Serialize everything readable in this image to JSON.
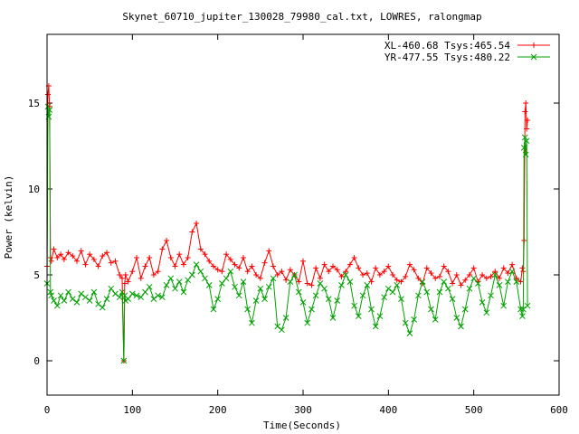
{
  "chart_data": {
    "type": "scatter",
    "title": "Skynet_60710_jupiter_130028_79980_cal.txt, LOWRES, ralongmap",
    "xlabel": "Time(Seconds)",
    "ylabel": "Power (kelvin)",
    "xlim": [
      0,
      600
    ],
    "ylim": [
      -2,
      19
    ],
    "x_ticks": [
      0,
      100,
      200,
      300,
      400,
      500,
      600
    ],
    "y_ticks": [
      0,
      5,
      10,
      15
    ],
    "grid": false,
    "legend_position": "top-right",
    "series": [
      {
        "name": "XL-460.68 Tsys:465.54",
        "color": "#ff0000",
        "marker": "plus",
        "x": [
          0,
          1,
          2,
          3,
          4,
          5,
          8,
          12,
          16,
          20,
          25,
          30,
          35,
          40,
          45,
          50,
          55,
          60,
          65,
          70,
          75,
          80,
          85,
          88,
          90,
          91,
          92,
          95,
          100,
          105,
          110,
          115,
          120,
          125,
          130,
          135,
          140,
          145,
          150,
          155,
          160,
          165,
          170,
          175,
          180,
          185,
          190,
          195,
          200,
          205,
          210,
          215,
          220,
          225,
          230,
          235,
          240,
          245,
          250,
          255,
          260,
          265,
          270,
          275,
          280,
          285,
          290,
          295,
          300,
          305,
          310,
          315,
          320,
          325,
          330,
          335,
          340,
          345,
          350,
          355,
          360,
          365,
          370,
          375,
          380,
          385,
          390,
          395,
          400,
          405,
          410,
          415,
          420,
          425,
          430,
          435,
          440,
          445,
          450,
          455,
          460,
          465,
          470,
          475,
          480,
          485,
          490,
          495,
          500,
          505,
          510,
          515,
          520,
          525,
          530,
          535,
          540,
          545,
          550,
          555,
          557,
          558,
          559,
          560,
          561,
          562,
          563
        ],
        "y": [
          5.5,
          15.5,
          16.0,
          14.8,
          6.0,
          5.8,
          6.5,
          6.0,
          6.2,
          5.9,
          6.3,
          6.1,
          5.8,
          6.4,
          5.6,
          6.2,
          5.9,
          5.5,
          6.1,
          6.3,
          5.7,
          5.8,
          5.0,
          4.8,
          0.0,
          4.5,
          5.0,
          4.6,
          5.2,
          6.0,
          4.8,
          5.5,
          6.0,
          5.0,
          5.2,
          6.5,
          7.0,
          6.0,
          5.5,
          6.2,
          5.6,
          6.0,
          7.5,
          8.0,
          6.5,
          6.2,
          5.8,
          5.5,
          5.3,
          5.2,
          6.2,
          5.9,
          5.6,
          5.4,
          6.0,
          5.2,
          5.5,
          5.0,
          4.8,
          5.7,
          6.4,
          5.5,
          5.0,
          5.2,
          4.7,
          5.3,
          5.0,
          4.6,
          5.8,
          4.5,
          4.4,
          5.4,
          4.8,
          5.6,
          5.2,
          5.5,
          5.3,
          4.9,
          5.2,
          5.6,
          6.0,
          5.4,
          5.0,
          5.1,
          4.6,
          5.4,
          5.0,
          5.2,
          5.5,
          5.0,
          4.7,
          4.6,
          4.9,
          5.6,
          5.3,
          4.8,
          4.5,
          5.4,
          5.1,
          4.8,
          4.9,
          5.5,
          5.2,
          4.5,
          5.0,
          4.4,
          4.7,
          5.0,
          5.4,
          4.6,
          5.0,
          4.8,
          4.9,
          5.2,
          4.8,
          5.4,
          5.1,
          5.6,
          4.8,
          4.6,
          5.4,
          5.2,
          7.0,
          14.5,
          15.0,
          13.5,
          14.0
        ]
      },
      {
        "name": "YR-477.55 Tsys:480.22",
        "color": "#00a000",
        "marker": "cross",
        "x": [
          0,
          1,
          2,
          3,
          4,
          5,
          8,
          12,
          16,
          20,
          25,
          30,
          35,
          40,
          45,
          50,
          55,
          60,
          65,
          70,
          75,
          80,
          85,
          88,
          90,
          91,
          92,
          95,
          100,
          105,
          110,
          115,
          120,
          125,
          130,
          135,
          140,
          145,
          150,
          155,
          160,
          165,
          170,
          175,
          180,
          185,
          190,
          195,
          200,
          205,
          210,
          215,
          220,
          225,
          230,
          235,
          240,
          245,
          250,
          255,
          260,
          265,
          270,
          275,
          280,
          285,
          290,
          295,
          300,
          305,
          310,
          315,
          320,
          325,
          330,
          335,
          340,
          345,
          350,
          355,
          360,
          365,
          370,
          375,
          380,
          385,
          390,
          395,
          400,
          405,
          410,
          415,
          420,
          425,
          430,
          435,
          440,
          445,
          450,
          455,
          460,
          465,
          470,
          475,
          480,
          485,
          490,
          495,
          500,
          505,
          510,
          515,
          520,
          525,
          530,
          535,
          540,
          545,
          550,
          555,
          557,
          558,
          559,
          560,
          561,
          562,
          563
        ],
        "y": [
          4.5,
          14.8,
          14.2,
          14.6,
          4.0,
          3.8,
          3.5,
          3.2,
          3.8,
          3.5,
          4.0,
          3.6,
          3.4,
          3.9,
          3.7,
          3.5,
          4.0,
          3.3,
          3.1,
          3.6,
          4.2,
          3.9,
          3.7,
          4.0,
          0.0,
          3.8,
          3.5,
          3.6,
          3.9,
          3.8,
          3.7,
          4.0,
          4.3,
          3.6,
          3.8,
          3.7,
          4.4,
          4.8,
          4.2,
          4.6,
          4.0,
          4.7,
          5.0,
          5.6,
          5.2,
          4.8,
          4.4,
          3.0,
          3.6,
          4.5,
          4.8,
          5.2,
          4.3,
          3.8,
          4.6,
          3.0,
          2.2,
          3.5,
          4.2,
          3.6,
          4.3,
          4.8,
          2.0,
          1.8,
          2.5,
          4.6,
          5.0,
          4.0,
          3.4,
          2.2,
          3.0,
          3.8,
          4.5,
          4.2,
          3.6,
          2.5,
          3.5,
          4.4,
          5.0,
          4.6,
          3.2,
          2.6,
          3.8,
          4.4,
          3.0,
          2.0,
          2.6,
          3.7,
          4.2,
          4.0,
          4.4,
          3.6,
          2.2,
          1.6,
          2.4,
          3.8,
          4.6,
          4.0,
          3.0,
          2.4,
          4.0,
          4.6,
          4.2,
          3.6,
          2.5,
          2.0,
          3.0,
          4.2,
          4.8,
          4.5,
          3.4,
          2.8,
          3.8,
          5.0,
          4.4,
          3.2,
          4.6,
          5.2,
          4.6,
          3.0,
          2.6,
          3.0,
          12.4,
          13.0,
          12.0,
          12.8,
          3.2
        ]
      }
    ]
  }
}
